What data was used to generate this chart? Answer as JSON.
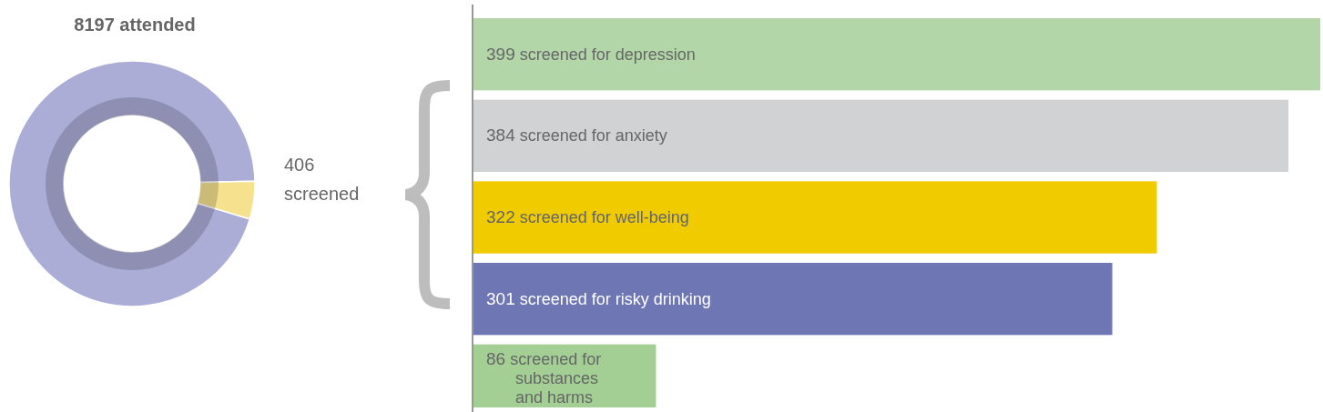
{
  "chart_data": [
    {
      "type": "donut",
      "title": "8197 attended",
      "categories": [
        null,
        "screened"
      ],
      "values": [
        7791,
        406
      ],
      "value_labels": [
        null,
        "406"
      ],
      "colors": [
        "#abadd7",
        "#f6e18f"
      ]
    },
    {
      "type": "bar",
      "orientation": "horizontal",
      "categories": [
        "screened for depression",
        "screened for anxiety",
        "screened for well-being",
        "screened for risky drinking",
        "screened for substances and harms"
      ],
      "values": [
        399,
        384,
        322,
        301,
        86
      ],
      "colors": [
        "#b3d6a9",
        "#d1d2d4",
        "#f0cb00",
        "#6e76b4",
        "#a3cf94"
      ],
      "data_labels": true
    }
  ]
}
